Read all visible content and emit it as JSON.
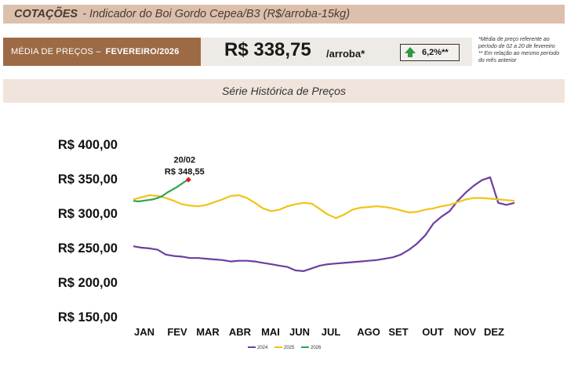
{
  "header": {
    "title_strong": "COTAÇÕES",
    "title_rest": "- Indicador do Boi Gordo Cepea/B3 (R$/arroba-15kg)"
  },
  "price_band": {
    "label": "MÉDIA DE PREÇOS –",
    "month": "FEVEREIRO/2026"
  },
  "price": {
    "value": "R$ 338,75",
    "unit": "/arroba*",
    "variation": "6,2%**",
    "variation_color": "#2e9a43"
  },
  "notes": {
    "line1": "*Média de preço referente ao período de 02 a 20 de fevereiro",
    "line2": "** Em relação ao mesmo período do mês anterior"
  },
  "section": {
    "title": "Série Histórica de Preços"
  },
  "chart_data": {
    "type": "line",
    "title": "",
    "xlabel": "",
    "ylabel": "",
    "ylim": [
      150,
      400
    ],
    "yticks": [
      "R$ 150,00",
      "R$ 200,00",
      "R$ 250,00",
      "R$ 300,00",
      "R$ 350,00",
      "R$ 400,00"
    ],
    "ytick_values": [
      150,
      200,
      250,
      300,
      350,
      400
    ],
    "months": [
      "JAN",
      "FEV",
      "MAR",
      "ABR",
      "MAI",
      "JUN",
      "JUL",
      "AGO",
      "SET",
      "OUT",
      "NOV",
      "DEZ"
    ],
    "grid": false,
    "legend_position": "bottom",
    "annotation": {
      "date_label": "20/02",
      "value_label": "R$ 348,55",
      "x": 1.7,
      "y": 348.55,
      "color": "#d62020"
    },
    "series": [
      {
        "name": "2024",
        "color": "#6b3fa0",
        "x": [
          0,
          0.25,
          0.5,
          0.75,
          1,
          1.25,
          1.5,
          1.75,
          2,
          2.25,
          2.5,
          2.75,
          3,
          3.25,
          3.5,
          3.75,
          4,
          4.25,
          4.5,
          4.75,
          5,
          5.25,
          5.5,
          5.75,
          6,
          6.25,
          6.5,
          6.75,
          7,
          7.25,
          7.5,
          7.75,
          8,
          8.25,
          8.5,
          8.75,
          9,
          9.25,
          9.5,
          9.75,
          10,
          10.25,
          10.5,
          10.75,
          11,
          11.25,
          11.5,
          11.75
        ],
        "values": [
          252,
          250,
          249,
          247,
          240,
          238,
          237,
          235,
          235,
          234,
          233,
          232,
          230,
          231,
          231,
          230,
          228,
          226,
          224,
          222,
          217,
          216,
          220,
          224,
          226,
          227,
          228,
          229,
          230,
          231,
          232,
          234,
          236,
          240,
          247,
          256,
          268,
          285,
          295,
          303,
          318,
          330,
          340,
          348,
          352,
          315,
          312,
          315
        ]
      },
      {
        "name": "2025",
        "color": "#f2c318",
        "x": [
          0,
          0.25,
          0.5,
          0.75,
          1,
          1.25,
          1.5,
          1.75,
          2,
          2.25,
          2.5,
          2.75,
          3,
          3.25,
          3.5,
          3.75,
          4,
          4.25,
          4.5,
          4.75,
          5,
          5.25,
          5.5,
          5.75,
          6,
          6.25,
          6.5,
          6.75,
          7,
          7.25,
          7.5,
          7.75,
          8,
          8.25,
          8.5,
          8.75,
          9,
          9.25,
          9.5,
          9.75,
          10,
          10.25,
          10.5,
          10.75,
          11,
          11.25,
          11.5,
          11.75
        ],
        "values": [
          320,
          323,
          326,
          325,
          322,
          318,
          313,
          311,
          310,
          312,
          316,
          320,
          325,
          326,
          322,
          315,
          307,
          303,
          305,
          310,
          313,
          315,
          314,
          306,
          298,
          293,
          298,
          305,
          308,
          309,
          310,
          309,
          307,
          304,
          301,
          302,
          305,
          307,
          310,
          312,
          316,
          320,
          322,
          322,
          321,
          320,
          319,
          318
        ]
      },
      {
        "name": "2026",
        "color": "#2ea44f",
        "x": [
          0,
          0.15,
          0.3,
          0.45,
          0.6,
          0.75,
          0.9,
          1.05,
          1.2,
          1.35,
          1.5,
          1.6,
          1.7
        ],
        "values": [
          318,
          317,
          318,
          319,
          320,
          322,
          325,
          330,
          334,
          338,
          343,
          346,
          348.55
        ]
      }
    ]
  }
}
